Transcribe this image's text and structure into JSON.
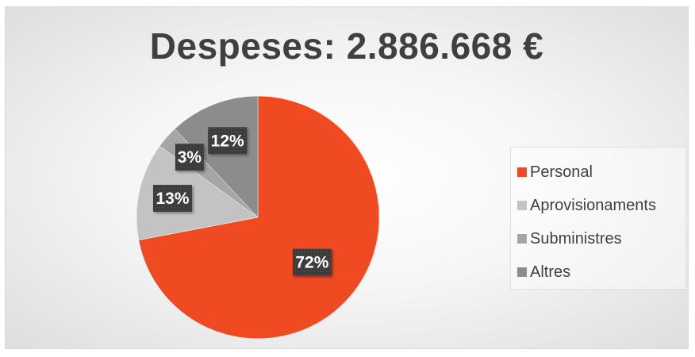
{
  "chart_data": {
    "type": "pie",
    "title": "Despeses: 2.886.668 €",
    "categories": [
      "Personal",
      "Aprovisionaments",
      "Subministres",
      "Altres"
    ],
    "values": [
      72,
      13,
      3,
      12
    ],
    "data_labels": [
      "72%",
      "13%",
      "3%",
      "12%"
    ],
    "colors": [
      "#f04a23",
      "#c3c3c3",
      "#a6a6a6",
      "#8c8c8c"
    ],
    "label_box_color": "#3a3a3a",
    "legend_placement": "right",
    "start_angle_deg": 0,
    "direction": "clockwise"
  }
}
